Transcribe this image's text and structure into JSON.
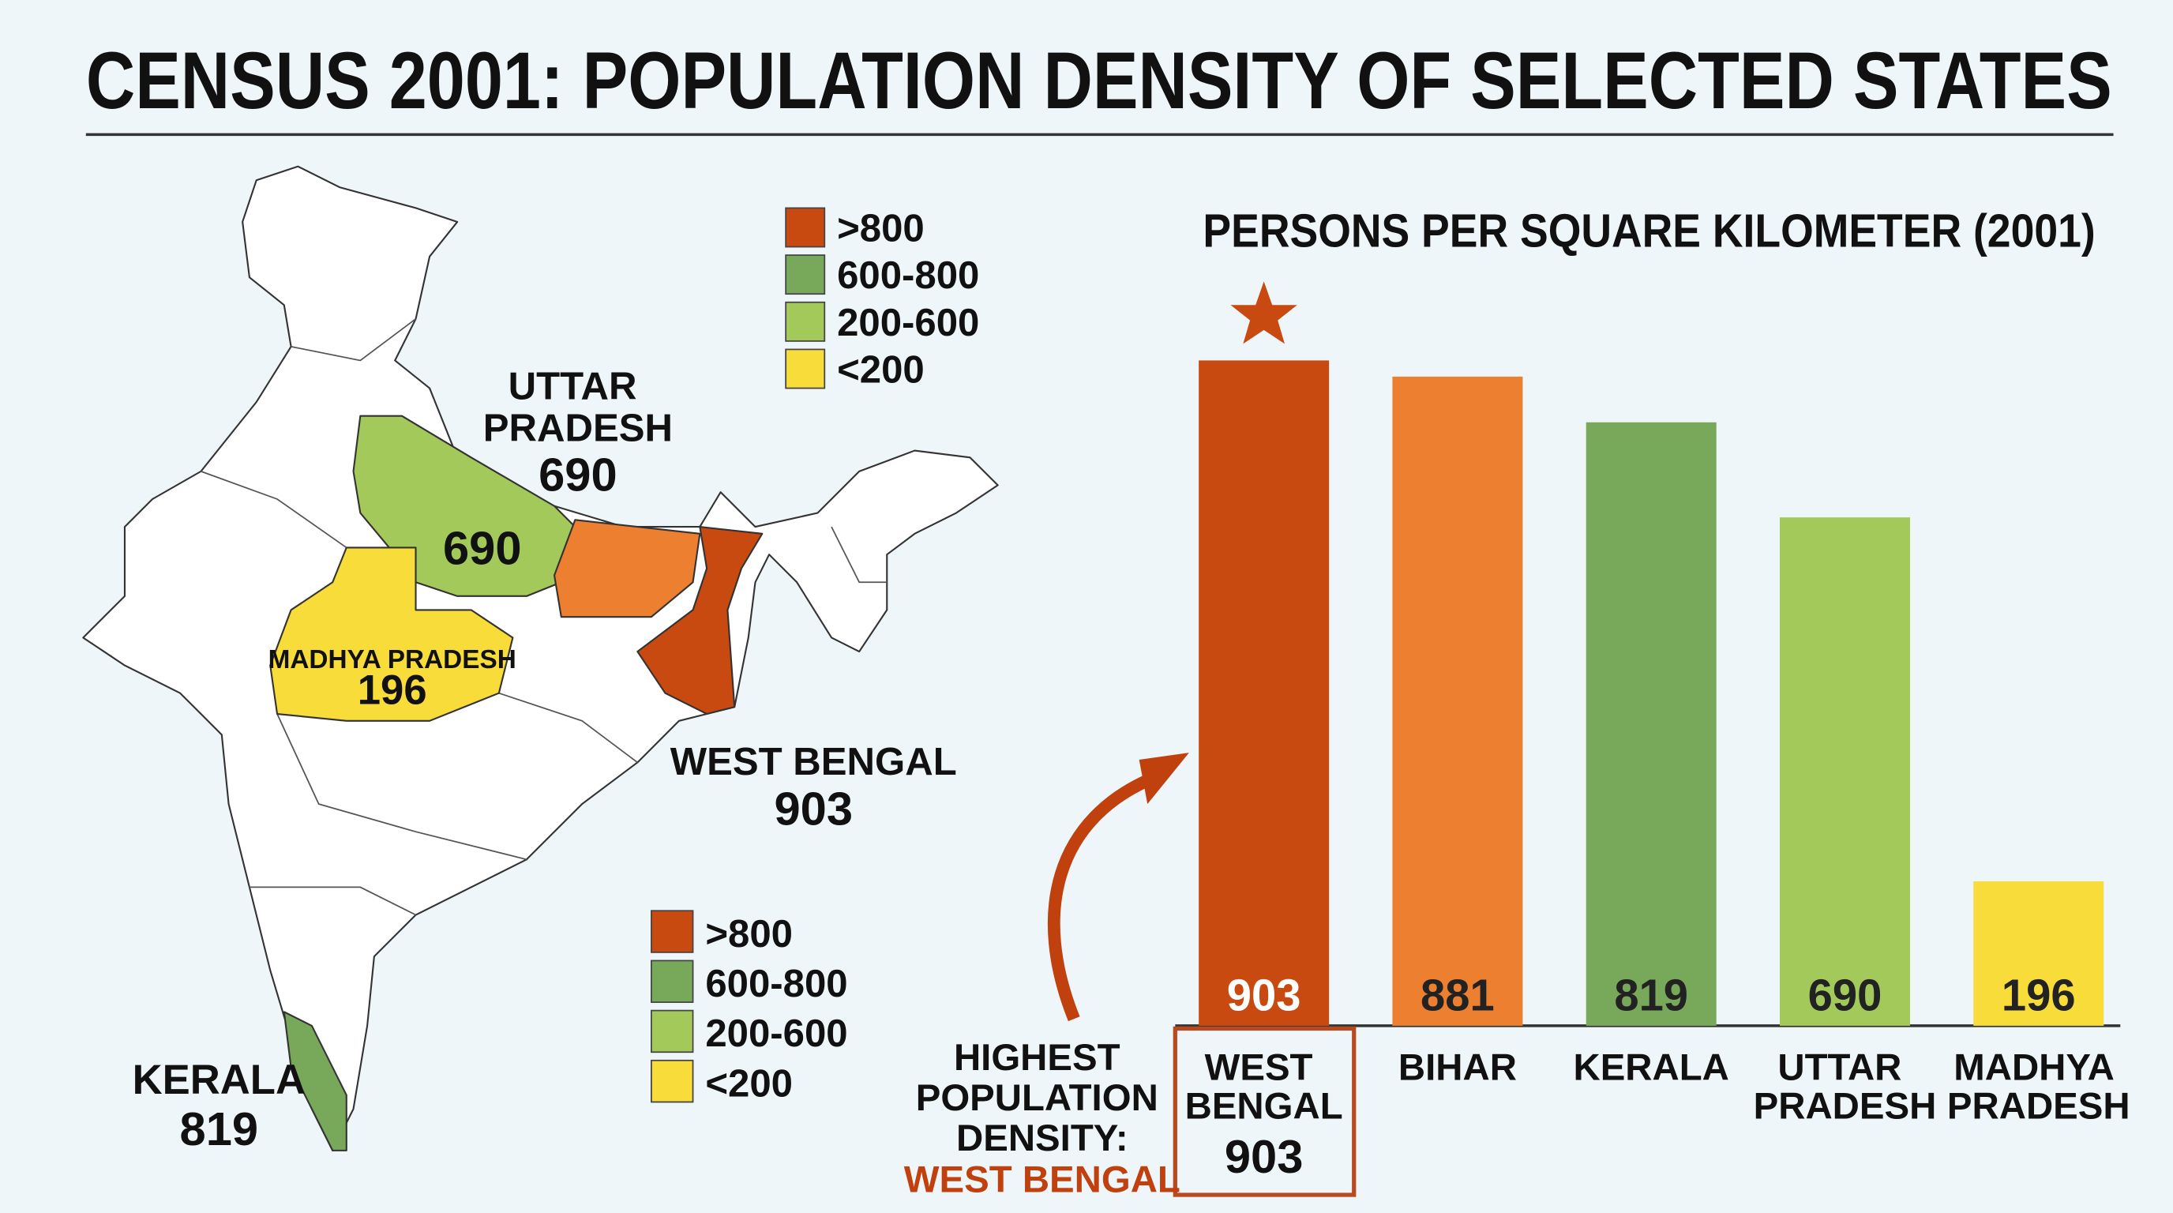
{
  "title": "CENSUS 2001: POPULATION DENSITY OF SELECTED STATES",
  "map": {
    "legend": [
      {
        "label": ">800",
        "color": "#c94a10"
      },
      {
        "label": "600-800",
        "color": "#78a85a"
      },
      {
        "label": "200-600",
        "color": "#a3c95a"
      },
      {
        "label": "<200",
        "color": "#f7dc3a"
      }
    ],
    "labels": [
      {
        "name": "UTTAR PRADESH",
        "value": 690
      },
      {
        "name": "MADHYA PRADESH",
        "value": 196
      },
      {
        "name": "WEST BENGAL",
        "value": 903
      },
      {
        "name": "KERALA",
        "value": 819
      }
    ]
  },
  "chart_data": {
    "type": "bar",
    "title": "PERSONS PER SQUARE KILOMETER (2001)",
    "categories": [
      "WEST BENGAL",
      "BIHAR",
      "KERALA",
      "UTTAR PRADESH",
      "MADHYA PRADESH"
    ],
    "values": [
      903,
      881,
      819,
      690,
      196
    ],
    "colors": [
      "#c94a10",
      "#ec8030",
      "#78a85a",
      "#a3c95a",
      "#f7dc3a"
    ],
    "annotation": {
      "text": "HIGHEST POPULATION DENSITY:",
      "highlight": "WEST BENGAL"
    }
  }
}
